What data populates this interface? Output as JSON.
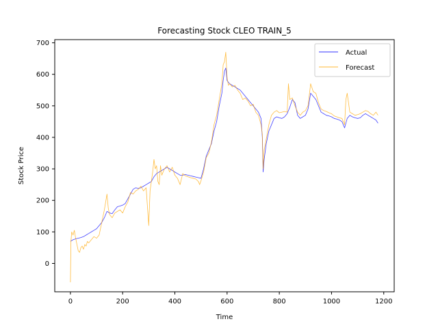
{
  "chart_data": {
    "type": "line",
    "title": "Forecasting Stock CLEO TRAIN_5",
    "xlabel": "Time",
    "ylabel": "Stock Price",
    "xlim": [
      -60,
      1240
    ],
    "ylim": [
      -90,
      710
    ],
    "xticks": [
      0,
      200,
      400,
      600,
      800,
      1000,
      1200
    ],
    "yticks": [
      0,
      100,
      200,
      300,
      400,
      500,
      600,
      700
    ],
    "grid": false,
    "legend": "top-right",
    "series": [
      {
        "name": "Actual",
        "color": "#0000ff",
        "points": [
          [
            0,
            70
          ],
          [
            10,
            75
          ],
          [
            20,
            78
          ],
          [
            30,
            80
          ],
          [
            40,
            82
          ],
          [
            50,
            85
          ],
          [
            60,
            90
          ],
          [
            70,
            95
          ],
          [
            80,
            100
          ],
          [
            90,
            105
          ],
          [
            100,
            110
          ],
          [
            110,
            120
          ],
          [
            120,
            130
          ],
          [
            130,
            145
          ],
          [
            140,
            165
          ],
          [
            150,
            160
          ],
          [
            160,
            158
          ],
          [
            170,
            170
          ],
          [
            180,
            180
          ],
          [
            190,
            182
          ],
          [
            200,
            185
          ],
          [
            210,
            190
          ],
          [
            220,
            205
          ],
          [
            230,
            220
          ],
          [
            240,
            235
          ],
          [
            250,
            240
          ],
          [
            260,
            238
          ],
          [
            270,
            240
          ],
          [
            280,
            245
          ],
          [
            290,
            250
          ],
          [
            300,
            255
          ],
          [
            310,
            260
          ],
          [
            320,
            275
          ],
          [
            330,
            285
          ],
          [
            340,
            290
          ],
          [
            350,
            295
          ],
          [
            360,
            300
          ],
          [
            370,
            305
          ],
          [
            380,
            300
          ],
          [
            390,
            295
          ],
          [
            400,
            290
          ],
          [
            410,
            285
          ],
          [
            420,
            280
          ],
          [
            430,
            280
          ],
          [
            440,
            282
          ],
          [
            450,
            280
          ],
          [
            460,
            278
          ],
          [
            470,
            276
          ],
          [
            480,
            274
          ],
          [
            490,
            272
          ],
          [
            500,
            270
          ],
          [
            510,
            300
          ],
          [
            520,
            340
          ],
          [
            530,
            360
          ],
          [
            540,
            380
          ],
          [
            550,
            420
          ],
          [
            560,
            450
          ],
          [
            570,
            500
          ],
          [
            580,
            540
          ],
          [
            585,
            580
          ],
          [
            590,
            610
          ],
          [
            595,
            620
          ],
          [
            600,
            580
          ],
          [
            610,
            570
          ],
          [
            620,
            565
          ],
          [
            630,
            560
          ],
          [
            640,
            555
          ],
          [
            650,
            550
          ],
          [
            660,
            540
          ],
          [
            670,
            530
          ],
          [
            680,
            520
          ],
          [
            690,
            510
          ],
          [
            700,
            500
          ],
          [
            710,
            490
          ],
          [
            720,
            480
          ],
          [
            730,
            460
          ],
          [
            735,
            400
          ],
          [
            738,
            290
          ],
          [
            742,
            330
          ],
          [
            750,
            380
          ],
          [
            760,
            420
          ],
          [
            770,
            440
          ],
          [
            780,
            460
          ],
          [
            790,
            465
          ],
          [
            800,
            462
          ],
          [
            810,
            460
          ],
          [
            820,
            465
          ],
          [
            830,
            475
          ],
          [
            840,
            495
          ],
          [
            850,
            520
          ],
          [
            860,
            510
          ],
          [
            870,
            470
          ],
          [
            880,
            460
          ],
          [
            890,
            465
          ],
          [
            900,
            470
          ],
          [
            910,
            490
          ],
          [
            920,
            540
          ],
          [
            930,
            530
          ],
          [
            940,
            520
          ],
          [
            950,
            500
          ],
          [
            960,
            480
          ],
          [
            970,
            475
          ],
          [
            980,
            470
          ],
          [
            990,
            468
          ],
          [
            1000,
            465
          ],
          [
            1010,
            460
          ],
          [
            1020,
            458
          ],
          [
            1030,
            455
          ],
          [
            1040,
            450
          ],
          [
            1050,
            430
          ],
          [
            1060,
            460
          ],
          [
            1070,
            470
          ],
          [
            1080,
            465
          ],
          [
            1090,
            462
          ],
          [
            1100,
            460
          ],
          [
            1110,
            462
          ],
          [
            1120,
            470
          ],
          [
            1130,
            475
          ],
          [
            1140,
            470
          ],
          [
            1150,
            465
          ],
          [
            1160,
            460
          ],
          [
            1170,
            455
          ],
          [
            1178,
            445
          ]
        ]
      },
      {
        "name": "Forecast",
        "color": "#ffa500",
        "points": [
          [
            0,
            -60
          ],
          [
            2,
            70
          ],
          [
            5,
            100
          ],
          [
            10,
            90
          ],
          [
            15,
            105
          ],
          [
            20,
            80
          ],
          [
            25,
            60
          ],
          [
            30,
            40
          ],
          [
            35,
            35
          ],
          [
            40,
            50
          ],
          [
            45,
            55
          ],
          [
            50,
            45
          ],
          [
            55,
            60
          ],
          [
            60,
            55
          ],
          [
            65,
            70
          ],
          [
            70,
            65
          ],
          [
            80,
            75
          ],
          [
            90,
            85
          ],
          [
            100,
            80
          ],
          [
            110,
            90
          ],
          [
            120,
            130
          ],
          [
            130,
            170
          ],
          [
            140,
            220
          ],
          [
            145,
            175
          ],
          [
            150,
            155
          ],
          [
            160,
            145
          ],
          [
            170,
            160
          ],
          [
            180,
            165
          ],
          [
            190,
            170
          ],
          [
            200,
            160
          ],
          [
            210,
            180
          ],
          [
            220,
            195
          ],
          [
            230,
            225
          ],
          [
            240,
            220
          ],
          [
            250,
            230
          ],
          [
            260,
            235
          ],
          [
            270,
            245
          ],
          [
            280,
            230
          ],
          [
            290,
            240
          ],
          [
            295,
            180
          ],
          [
            300,
            120
          ],
          [
            305,
            230
          ],
          [
            310,
            260
          ],
          [
            315,
            290
          ],
          [
            320,
            330
          ],
          [
            325,
            300
          ],
          [
            330,
            310
          ],
          [
            335,
            260
          ],
          [
            340,
            250
          ],
          [
            345,
            310
          ],
          [
            350,
            280
          ],
          [
            360,
            300
          ],
          [
            370,
            310
          ],
          [
            380,
            290
          ],
          [
            390,
            305
          ],
          [
            400,
            280
          ],
          [
            410,
            270
          ],
          [
            420,
            250
          ],
          [
            430,
            285
          ],
          [
            440,
            278
          ],
          [
            450,
            275
          ],
          [
            460,
            272
          ],
          [
            470,
            270
          ],
          [
            480,
            268
          ],
          [
            490,
            260
          ],
          [
            495,
            250
          ],
          [
            500,
            262
          ],
          [
            510,
            290
          ],
          [
            520,
            335
          ],
          [
            530,
            350
          ],
          [
            540,
            385
          ],
          [
            550,
            440
          ],
          [
            560,
            470
          ],
          [
            570,
            520
          ],
          [
            580,
            570
          ],
          [
            585,
            630
          ],
          [
            590,
            640
          ],
          [
            595,
            670
          ],
          [
            600,
            590
          ],
          [
            605,
            565
          ],
          [
            610,
            570
          ],
          [
            620,
            560
          ],
          [
            630,
            565
          ],
          [
            640,
            550
          ],
          [
            650,
            540
          ],
          [
            660,
            520
          ],
          [
            670,
            525
          ],
          [
            680,
            515
          ],
          [
            690,
            500
          ],
          [
            700,
            505
          ],
          [
            710,
            480
          ],
          [
            720,
            470
          ],
          [
            730,
            440
          ],
          [
            735,
            410
          ],
          [
            738,
            300
          ],
          [
            742,
            360
          ],
          [
            750,
            395
          ],
          [
            760,
            440
          ],
          [
            770,
            470
          ],
          [
            780,
            480
          ],
          [
            790,
            485
          ],
          [
            800,
            478
          ],
          [
            810,
            480
          ],
          [
            820,
            482
          ],
          [
            830,
            480
          ],
          [
            835,
            570
          ],
          [
            840,
            520
          ],
          [
            850,
            525
          ],
          [
            860,
            500
          ],
          [
            870,
            480
          ],
          [
            880,
            470
          ],
          [
            890,
            480
          ],
          [
            900,
            485
          ],
          [
            910,
            500
          ],
          [
            920,
            570
          ],
          [
            930,
            545
          ],
          [
            940,
            540
          ],
          [
            950,
            510
          ],
          [
            960,
            490
          ],
          [
            970,
            485
          ],
          [
            980,
            482
          ],
          [
            990,
            478
          ],
          [
            1000,
            475
          ],
          [
            1010,
            468
          ],
          [
            1020,
            465
          ],
          [
            1030,
            462
          ],
          [
            1040,
            460
          ],
          [
            1050,
            440
          ],
          [
            1055,
            520
          ],
          [
            1060,
            540
          ],
          [
            1070,
            480
          ],
          [
            1080,
            475
          ],
          [
            1090,
            470
          ],
          [
            1100,
            472
          ],
          [
            1110,
            475
          ],
          [
            1120,
            480
          ],
          [
            1130,
            485
          ],
          [
            1140,
            482
          ],
          [
            1150,
            475
          ],
          [
            1160,
            470
          ],
          [
            1170,
            480
          ],
          [
            1178,
            470
          ]
        ]
      }
    ]
  }
}
